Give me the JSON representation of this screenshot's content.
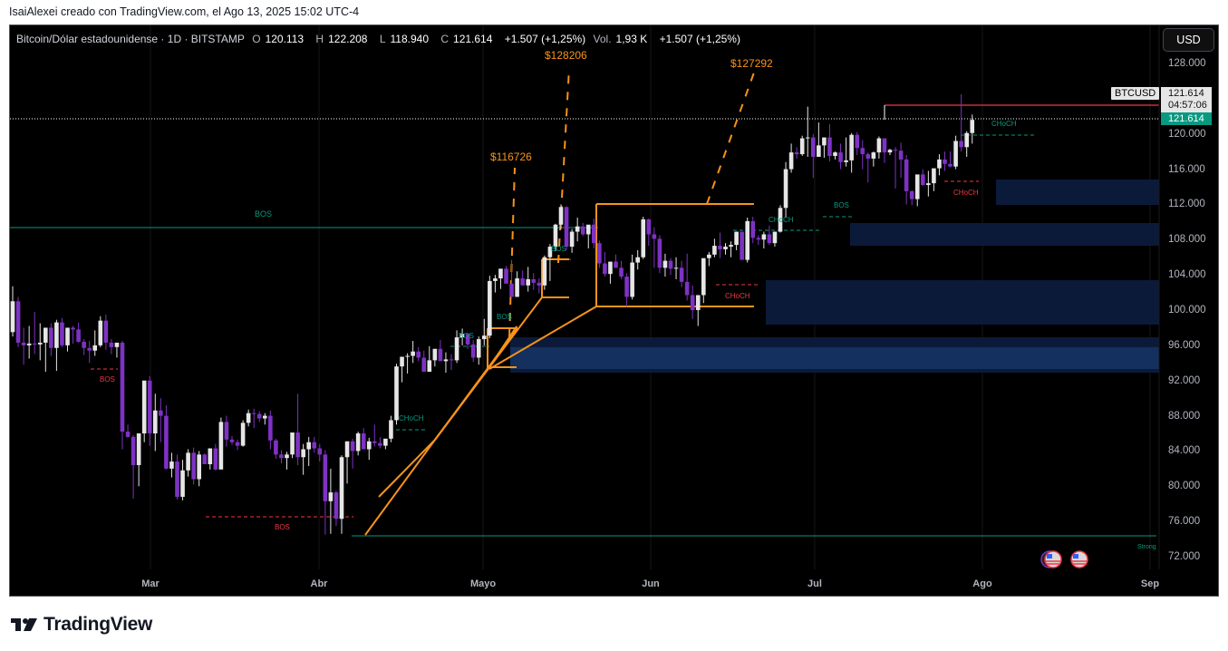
{
  "caption": "IsaiAlexei creado con TradingView.com, el Ago 13, 2025 15:02 UTC-4",
  "legend": {
    "symbol": "Bitcoin/Dólar estadounidense · 1D · BITSTAMP",
    "o_label": "O",
    "o_value": "120.113",
    "h_label": "H",
    "h_value": "122.208",
    "l_label": "L",
    "l_value": "118.940",
    "c_label": "C",
    "c_value": "121.614",
    "change": "+1.507 (+1,25%)",
    "vol_label": "Vol.",
    "vol_value": "1,93 K",
    "vol_change": "+1.507 (+1,25%)"
  },
  "currency_button": "USD",
  "symbol_tag": "BTCUSD",
  "last_price": "121.614",
  "countdown": "04:57:06",
  "last_price_green": "121.614",
  "logo_text": "TradingView",
  "colors": {
    "up_candle": "#e6e6e6",
    "down_candle": "#7e32c4",
    "orange": "#f7931a",
    "teal": "#089981",
    "red": "#f23645",
    "zone": "#0c1a3a",
    "zone_strong": "#14305f"
  },
  "chart_data": {
    "type": "candlestick",
    "title": "Bitcoin/Dólar estadounidense · 1D · BITSTAMP",
    "xlabel": "",
    "ylabel": "USD",
    "ylim": [
      70000,
      130000
    ],
    "y_ticks": [
      "128.000",
      "120.000",
      "116.000",
      "112.000",
      "108.000",
      "104.000",
      "100.000",
      "96.000",
      "92.000",
      "88.000",
      "84.000",
      "80.000",
      "76.000",
      "72.000"
    ],
    "x_ticks": [
      {
        "label": "Mar",
        "x": 166
      },
      {
        "label": "Abr",
        "x": 352
      },
      {
        "label": "Mayo",
        "x": 533
      },
      {
        "label": "Jun",
        "x": 718
      },
      {
        "label": "Jul",
        "x": 899
      },
      {
        "label": "Ago",
        "x": 1084
      },
      {
        "label": "Sep",
        "x": 1269
      }
    ],
    "candle_spacing_px": 6.05,
    "first_candle_x": 14,
    "ohlc_thousands": [
      [
        97.5,
        102.7,
        97.0,
        101.0
      ],
      [
        101.0,
        101.5,
        95.8,
        96.3
      ],
      [
        96.3,
        98.0,
        93.8,
        96.0
      ],
      [
        96.0,
        98.2,
        94.5,
        96.2
      ],
      [
        96.2,
        99.8,
        95.0,
        96.1
      ],
      [
        96.1,
        98.5,
        94.3,
        96.3
      ],
      [
        96.3,
        97.8,
        93.0,
        98.0
      ],
      [
        98.0,
        98.5,
        94.8,
        95.7
      ],
      [
        95.7,
        98.9,
        93.1,
        98.6
      ],
      [
        98.6,
        99.1,
        95.8,
        96.0
      ],
      [
        96.0,
        97.4,
        95.3,
        98.0
      ],
      [
        98.0,
        98.2,
        96.2,
        97.8
      ],
      [
        97.8,
        98.6,
        96.3,
        96.4
      ],
      [
        96.4,
        96.7,
        94.9,
        95.7
      ],
      [
        95.7,
        96.5,
        94.0,
        95.4
      ],
      [
        95.4,
        97.7,
        94.8,
        96.0
      ],
      [
        96.0,
        99.3,
        95.8,
        98.8
      ],
      [
        98.8,
        99.5,
        95.5,
        96.3
      ],
      [
        96.3,
        96.7,
        95.0,
        95.8
      ],
      [
        95.8,
        96.0,
        94.6,
        96.3
      ],
      [
        96.3,
        96.5,
        84.2,
        86.2
      ],
      [
        86.2,
        87.0,
        85.5,
        85.6
      ],
      [
        85.6,
        85.8,
        78.6,
        82.4
      ],
      [
        82.4,
        86.0,
        80.0,
        86.0
      ],
      [
        86.0,
        91.5,
        85.0,
        92.0
      ],
      [
        92.0,
        92.5,
        84.6,
        86.0
      ],
      [
        86.0,
        90.5,
        84.0,
        88.6
      ],
      [
        88.6,
        90.0,
        85.0,
        88.0
      ],
      [
        88.0,
        89.2,
        81.9,
        82.0
      ],
      [
        82.0,
        83.8,
        81.0,
        82.8
      ],
      [
        82.8,
        83.6,
        78.5,
        78.8
      ],
      [
        78.8,
        83.0,
        78.4,
        81.8
      ],
      [
        81.8,
        84.2,
        81.1,
        83.8
      ],
      [
        83.8,
        84.4,
        80.2,
        80.8
      ],
      [
        80.8,
        84.0,
        80.0,
        83.6
      ],
      [
        83.6,
        83.7,
        82.5,
        82.5
      ],
      [
        82.5,
        84.0,
        81.9,
        84.3
      ],
      [
        84.3,
        84.8,
        81.8,
        81.9
      ],
      [
        81.9,
        87.8,
        82.0,
        87.3
      ],
      [
        87.3,
        88.0,
        84.5,
        85.3
      ],
      [
        85.3,
        85.7,
        84.7,
        85.0
      ],
      [
        85.0,
        85.3,
        84.1,
        84.6
      ],
      [
        84.6,
        87.5,
        84.5,
        87.2
      ],
      [
        87.2,
        88.7,
        86.8,
        88.3
      ],
      [
        88.3,
        88.8,
        86.6,
        88.2
      ],
      [
        88.2,
        88.5,
        87.3,
        87.7
      ],
      [
        87.7,
        88.3,
        87.0,
        88.0
      ],
      [
        88.0,
        88.6,
        84.2,
        85.2
      ],
      [
        85.2,
        85.4,
        83.1,
        83.6
      ],
      [
        83.6,
        84.1,
        82.6,
        83.2
      ],
      [
        83.2,
        83.9,
        81.9,
        83.6
      ],
      [
        83.6,
        86.1,
        83.2,
        86.1
      ],
      [
        86.1,
        90.5,
        82.4,
        83.3
      ],
      [
        83.3,
        84.8,
        81.3,
        84.2
      ],
      [
        84.2,
        85.6,
        82.3,
        85.0
      ],
      [
        85.0,
        85.6,
        83.8,
        84.3
      ],
      [
        84.3,
        84.8,
        82.8,
        83.6
      ],
      [
        83.6,
        84.1,
        74.5,
        78.3
      ],
      [
        78.3,
        82.0,
        74.6,
        79.3
      ],
      [
        79.3,
        79.5,
        75.5,
        76.3
      ],
      [
        76.3,
        83.5,
        74.6,
        83.3
      ],
      [
        83.3,
        84.0,
        80.3,
        85.1
      ],
      [
        85.1,
        85.4,
        82.0,
        84.0
      ],
      [
        84.0,
        86.2,
        83.5,
        86.0
      ],
      [
        86.0,
        86.6,
        84.8,
        84.2
      ],
      [
        84.2,
        85.5,
        83.0,
        85.1
      ],
      [
        85.1,
        87.0,
        84.5,
        84.9
      ],
      [
        84.9,
        85.6,
        84.3,
        84.6
      ],
      [
        84.6,
        85.4,
        84.2,
        85.4
      ],
      [
        85.4,
        88.0,
        85.0,
        87.5
      ],
      [
        87.5,
        93.9,
        87.0,
        93.6
      ],
      [
        93.6,
        94.3,
        91.8,
        94.7
      ],
      [
        94.7,
        95.1,
        92.8,
        94.8
      ],
      [
        94.8,
        96.5,
        94.0,
        95.3
      ],
      [
        95.3,
        95.8,
        94.2,
        94.6
      ],
      [
        94.6,
        95.4,
        93.0,
        93.0
      ],
      [
        93.0,
        95.9,
        93.0,
        94.3
      ],
      [
        94.3,
        95.3,
        93.6,
        95.6
      ],
      [
        95.6,
        96.6,
        94.6,
        94.2
      ],
      [
        94.2,
        95.2,
        92.9,
        94.4
      ],
      [
        94.4,
        95.0,
        93.2,
        94.3
      ],
      [
        94.3,
        97.7,
        94.0,
        96.9
      ],
      [
        96.9,
        97.9,
        96.0,
        97.3
      ],
      [
        97.3,
        97.4,
        95.6,
        96.1
      ],
      [
        96.1,
        96.6,
        94.1,
        94.6
      ],
      [
        94.6,
        97.0,
        93.8,
        96.7
      ],
      [
        96.7,
        99.0,
        96.0,
        97.1
      ],
      [
        97.1,
        103.9,
        96.8,
        103.3
      ],
      [
        103.3,
        104.0,
        102.0,
        103.6
      ],
      [
        103.6,
        104.4,
        102.4,
        104.7
      ],
      [
        104.7,
        105.0,
        103.2,
        103.0
      ],
      [
        103.0,
        105.7,
        101.6,
        101.5
      ],
      [
        101.5,
        104.4,
        101.5,
        103.6
      ],
      [
        103.6,
        104.5,
        102.8,
        102.8
      ],
      [
        102.8,
        104.9,
        102.1,
        103.5
      ],
      [
        103.5,
        104.2,
        102.3,
        103.1
      ],
      [
        103.1,
        103.6,
        101.9,
        102.8
      ],
      [
        102.8,
        106.2,
        102.3,
        106.0
      ],
      [
        106.0,
        107.5,
        103.3,
        107.2
      ],
      [
        107.2,
        109.8,
        106.7,
        109.7
      ],
      [
        109.7,
        112.0,
        109.2,
        111.7
      ],
      [
        111.7,
        111.8,
        106.8,
        107.2
      ],
      [
        107.2,
        109.2,
        106.5,
        108.9
      ],
      [
        108.9,
        110.5,
        107.8,
        109.5
      ],
      [
        109.5,
        109.9,
        108.4,
        108.6
      ],
      [
        108.6,
        108.9,
        107.0,
        109.7
      ],
      [
        109.7,
        110.4,
        107.0,
        107.6
      ],
      [
        107.6,
        107.9,
        104.8,
        105.3
      ],
      [
        105.3,
        106.6,
        103.8,
        104.1
      ],
      [
        104.1,
        104.8,
        103.0,
        105.5
      ],
      [
        105.5,
        106.3,
        104.9,
        104.8
      ],
      [
        104.8,
        105.6,
        103.5,
        103.8
      ],
      [
        103.8,
        104.2,
        100.4,
        101.5
      ],
      [
        101.5,
        106.3,
        101.2,
        105.4
      ],
      [
        105.4,
        106.8,
        104.6,
        106.0
      ],
      [
        106.0,
        110.6,
        105.8,
        110.3
      ],
      [
        110.3,
        110.4,
        107.3,
        108.6
      ],
      [
        108.6,
        109.4,
        104.8,
        108.1
      ],
      [
        108.1,
        108.5,
        104.2,
        104.8
      ],
      [
        104.8,
        106.4,
        103.8,
        105.6
      ],
      [
        105.6,
        105.9,
        104.0,
        104.7
      ],
      [
        104.7,
        106.0,
        103.5,
        104.8
      ],
      [
        104.8,
        105.6,
        102.6,
        103.2
      ],
      [
        103.2,
        106.4,
        101.1,
        101.7
      ],
      [
        101.7,
        102.8,
        99.0,
        100.0
      ],
      [
        100.0,
        100.6,
        98.2,
        101.7
      ],
      [
        101.7,
        105.5,
        100.8,
        105.9
      ],
      [
        105.9,
        106.6,
        105.0,
        106.3
      ],
      [
        106.3,
        108.1,
        106.0,
        107.3
      ],
      [
        107.3,
        108.8,
        105.9,
        106.9
      ],
      [
        106.9,
        107.6,
        106.3,
        107.2
      ],
      [
        107.2,
        107.8,
        106.0,
        107.4
      ],
      [
        107.4,
        108.8,
        106.8,
        108.9
      ],
      [
        108.9,
        108.9,
        106.3,
        105.7
      ],
      [
        105.7,
        110.5,
        105.4,
        110.1
      ],
      [
        110.1,
        110.6,
        107.6,
        108.2
      ],
      [
        108.2,
        108.5,
        107.4,
        108.0
      ],
      [
        108.0,
        108.9,
        107.0,
        108.6
      ],
      [
        108.6,
        109.6,
        107.4,
        107.6
      ],
      [
        107.6,
        108.9,
        107.2,
        108.9
      ],
      [
        108.9,
        111.9,
        108.8,
        111.6
      ],
      [
        111.6,
        116.8,
        110.5,
        116.0
      ],
      [
        116.0,
        118.9,
        115.6,
        117.9
      ],
      [
        117.9,
        118.5,
        117.2,
        117.7
      ],
      [
        117.7,
        119.8,
        117.5,
        119.5
      ],
      [
        119.5,
        123.1,
        117.4,
        119.6
      ],
      [
        119.6,
        120.0,
        115.0,
        117.4
      ],
      [
        117.4,
        121.3,
        117.4,
        118.7
      ],
      [
        118.7,
        119.6,
        117.3,
        119.6
      ],
      [
        119.6,
        121.1,
        116.9,
        117.5
      ],
      [
        117.5,
        118.0,
        117.1,
        117.9
      ],
      [
        117.9,
        118.9,
        116.0,
        116.8
      ],
      [
        116.8,
        119.6,
        116.3,
        117.0
      ],
      [
        117.0,
        120.1,
        115.6,
        119.9
      ],
      [
        119.9,
        120.2,
        117.6,
        118.4
      ],
      [
        118.4,
        119.3,
        116.0,
        117.7
      ],
      [
        117.7,
        117.9,
        114.5,
        117.2
      ],
      [
        117.2,
        118.0,
        116.3,
        117.9
      ],
      [
        117.9,
        119.7,
        117.2,
        119.5
      ],
      [
        119.5,
        119.5,
        116.7,
        117.9
      ],
      [
        117.9,
        118.3,
        117.6,
        118.2
      ],
      [
        118.2,
        118.5,
        113.8,
        118.1
      ],
      [
        118.1,
        119.0,
        115.0,
        117.1
      ],
      [
        117.1,
        117.6,
        112.0,
        113.5
      ],
      [
        113.5,
        113.6,
        111.9,
        112.6
      ],
      [
        112.6,
        114.7,
        111.8,
        115.4
      ],
      [
        115.4,
        116.0,
        114.1,
        114.2
      ],
      [
        114.2,
        115.8,
        112.9,
        114.4
      ],
      [
        114.4,
        115.0,
        113.5,
        116.1
      ],
      [
        116.1,
        117.7,
        115.3,
        117.1
      ],
      [
        117.1,
        118.0,
        115.8,
        116.6
      ],
      [
        116.6,
        118.0,
        116.2,
        116.3
      ],
      [
        116.3,
        119.8,
        116.0,
        119.2
      ],
      [
        119.2,
        124.5,
        118.0,
        118.5
      ],
      [
        118.5,
        120.3,
        117.4,
        120.1
      ],
      [
        120.1,
        122.2,
        118.9,
        121.6
      ]
    ],
    "annotations": [
      {
        "type": "label",
        "text": "BOS",
        "color": "teal"
      },
      {
        "type": "label",
        "text": "BOS",
        "color": "red"
      },
      {
        "type": "label",
        "text": "CHoCH",
        "color": "teal"
      },
      {
        "type": "label",
        "text": "CHoCH",
        "color": "red"
      },
      {
        "type": "label",
        "text": "Strong",
        "color": "teal"
      },
      {
        "type": "target",
        "text": "$116726"
      },
      {
        "type": "target",
        "text": "$128206"
      },
      {
        "type": "target",
        "text": "$127292"
      }
    ]
  },
  "labels": {
    "bos": "BOS",
    "choch": "CHoCH",
    "strong": "Strong",
    "target1": "$116726",
    "target2": "$128206",
    "target3": "$127292"
  }
}
